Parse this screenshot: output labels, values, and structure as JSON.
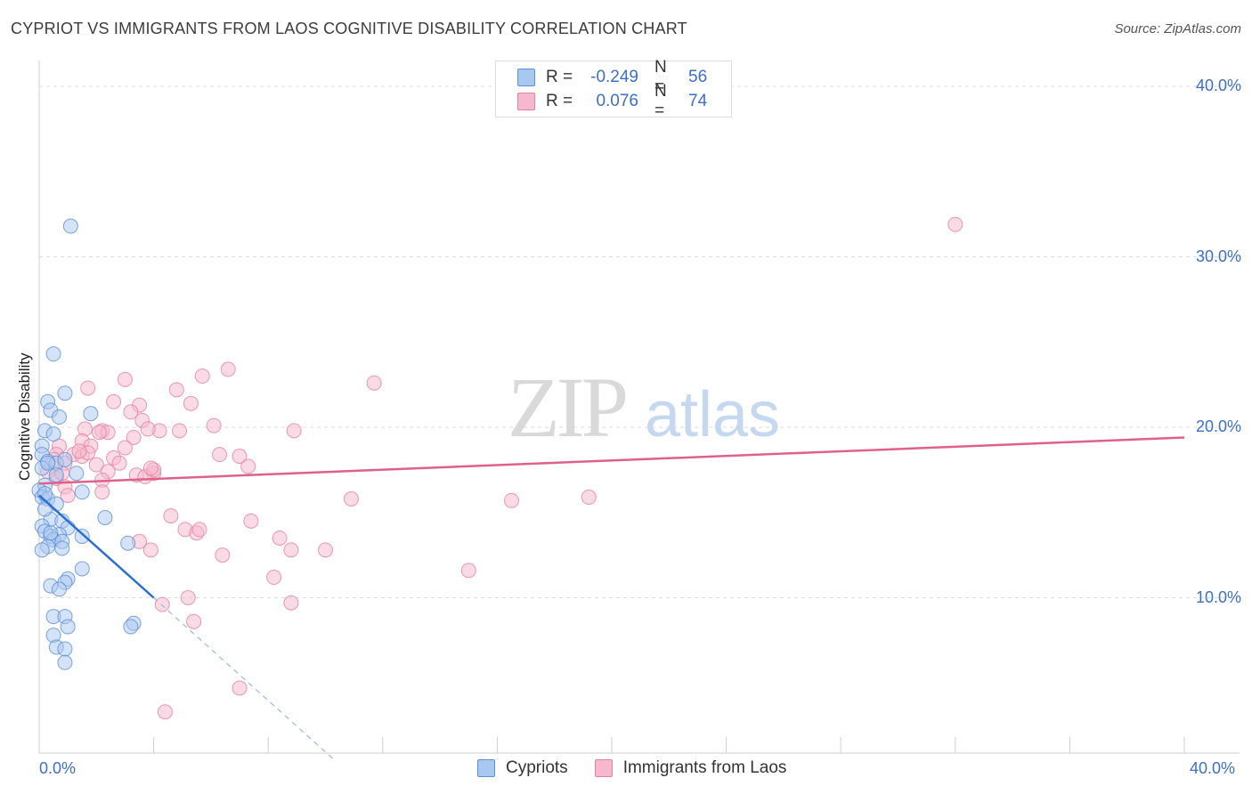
{
  "title": "CYPRIOT VS IMMIGRANTS FROM LAOS COGNITIVE DISABILITY CORRELATION CHART",
  "source": "Source: ZipAtlas.com",
  "watermark": {
    "zip": "ZIP",
    "atlas": "atlas"
  },
  "legend_box": {
    "rows": [
      {
        "r_label": "R =",
        "r_value": "-0.249",
        "n_label": "N =",
        "n_value": "56"
      },
      {
        "r_label": "R =",
        "r_value": "0.076",
        "n_label": "N =",
        "n_value": "74"
      }
    ]
  },
  "bottom_legend": [
    "Cypriots",
    "Immigrants from Laos"
  ],
  "colors": {
    "blue_fill": "#a9c8f0",
    "blue_stroke": "#5b8fd6",
    "blue_line": "#2a6fd6",
    "pink_fill": "#f6b8cc",
    "pink_stroke": "#e67fa0",
    "pink_line": "#e0608c",
    "axis_text": "#3d6fc4"
  },
  "chart_data": {
    "type": "scatter",
    "title": "CYPRIOT VS IMMIGRANTS FROM LAOS COGNITIVE DISABILITY CORRELATION CHART",
    "xlabel": "",
    "ylabel": "Cognitive Disability",
    "xlim": [
      0,
      40
    ],
    "ylim": [
      0,
      40
    ],
    "x_tick_labels": [
      "0.0%",
      "40.0%"
    ],
    "y_tick_labels": [
      "10.0%",
      "20.0%",
      "30.0%",
      "40.0%"
    ],
    "y_ticks": [
      10,
      20,
      30,
      40
    ],
    "grid": true,
    "series": [
      {
        "name": "Cypriots",
        "color": "blue",
        "r": -0.249,
        "n": 56,
        "trend": {
          "x": [
            0,
            4.0
          ],
          "y": [
            16.0,
            10.0
          ]
        },
        "trend_extension": {
          "x": [
            4.0,
            10.3
          ],
          "y": [
            10.0,
            0.5
          ]
        },
        "points": [
          [
            1.1,
            31.8
          ],
          [
            0.5,
            24.3
          ],
          [
            0.9,
            22.0
          ],
          [
            0.3,
            21.5
          ],
          [
            0.4,
            21.0
          ],
          [
            1.8,
            20.8
          ],
          [
            0.7,
            20.6
          ],
          [
            0.2,
            19.8
          ],
          [
            0.5,
            19.6
          ],
          [
            0.1,
            18.9
          ],
          [
            0.1,
            18.4
          ],
          [
            0.3,
            18.0
          ],
          [
            0.6,
            17.9
          ],
          [
            0.1,
            17.6
          ],
          [
            1.3,
            17.3
          ],
          [
            0.2,
            16.6
          ],
          [
            0.0,
            16.3
          ],
          [
            1.5,
            16.2
          ],
          [
            0.1,
            15.9
          ],
          [
            0.3,
            15.8
          ],
          [
            0.6,
            15.5
          ],
          [
            2.3,
            14.7
          ],
          [
            0.4,
            14.6
          ],
          [
            0.8,
            14.5
          ],
          [
            0.1,
            14.2
          ],
          [
            1.0,
            14.1
          ],
          [
            0.2,
            13.9
          ],
          [
            0.7,
            13.7
          ],
          [
            0.4,
            13.6
          ],
          [
            1.5,
            13.6
          ],
          [
            0.5,
            13.4
          ],
          [
            0.8,
            13.3
          ],
          [
            0.3,
            13.0
          ],
          [
            0.8,
            12.9
          ],
          [
            0.1,
            12.8
          ],
          [
            3.1,
            13.2
          ],
          [
            1.5,
            11.7
          ],
          [
            1.0,
            11.1
          ],
          [
            0.9,
            10.9
          ],
          [
            0.4,
            10.7
          ],
          [
            0.7,
            10.5
          ],
          [
            0.5,
            8.9
          ],
          [
            0.9,
            8.9
          ],
          [
            3.3,
            8.5
          ],
          [
            1.0,
            8.3
          ],
          [
            3.2,
            8.3
          ],
          [
            0.5,
            7.8
          ],
          [
            0.6,
            7.1
          ],
          [
            0.9,
            7.0
          ],
          [
            0.9,
            6.2
          ],
          [
            0.3,
            17.9
          ],
          [
            0.2,
            15.2
          ],
          [
            0.6,
            17.2
          ],
          [
            0.9,
            18.1
          ],
          [
            0.2,
            16.1
          ],
          [
            0.4,
            13.8
          ]
        ]
      },
      {
        "name": "Immigrants from Laos",
        "color": "pink",
        "r": 0.076,
        "n": 74,
        "trend": {
          "x": [
            0,
            40
          ],
          "y": [
            16.7,
            19.4
          ]
        },
        "points": [
          [
            32.0,
            31.9
          ],
          [
            6.6,
            23.4
          ],
          [
            5.7,
            23.0
          ],
          [
            3.0,
            22.8
          ],
          [
            11.7,
            22.6
          ],
          [
            1.7,
            22.3
          ],
          [
            4.8,
            22.2
          ],
          [
            2.6,
            21.5
          ],
          [
            5.3,
            21.4
          ],
          [
            3.5,
            21.3
          ],
          [
            3.2,
            20.9
          ],
          [
            3.6,
            20.4
          ],
          [
            6.1,
            20.1
          ],
          [
            1.6,
            19.9
          ],
          [
            2.2,
            19.8
          ],
          [
            2.4,
            19.7
          ],
          [
            4.2,
            19.8
          ],
          [
            4.9,
            19.8
          ],
          [
            8.9,
            19.8
          ],
          [
            3.3,
            19.4
          ],
          [
            1.5,
            19.2
          ],
          [
            1.8,
            18.9
          ],
          [
            0.7,
            18.9
          ],
          [
            3.0,
            18.8
          ],
          [
            0.6,
            18.4
          ],
          [
            1.2,
            18.4
          ],
          [
            1.5,
            18.3
          ],
          [
            6.3,
            18.4
          ],
          [
            7.0,
            18.3
          ],
          [
            0.5,
            18.1
          ],
          [
            2.6,
            18.2
          ],
          [
            2.8,
            17.9
          ],
          [
            0.9,
            17.9
          ],
          [
            2.0,
            17.8
          ],
          [
            7.3,
            17.7
          ],
          [
            0.3,
            17.4
          ],
          [
            2.4,
            17.4
          ],
          [
            3.4,
            17.2
          ],
          [
            4.0,
            17.3
          ],
          [
            0.6,
            17.0
          ],
          [
            2.2,
            16.9
          ],
          [
            3.7,
            17.1
          ],
          [
            0.9,
            16.5
          ],
          [
            2.2,
            16.2
          ],
          [
            1.0,
            16.0
          ],
          [
            10.9,
            15.8
          ],
          [
            16.5,
            15.7
          ],
          [
            19.2,
            15.9
          ],
          [
            4.6,
            14.8
          ],
          [
            7.4,
            14.5
          ],
          [
            5.1,
            14.0
          ],
          [
            5.5,
            13.8
          ],
          [
            8.4,
            13.5
          ],
          [
            3.5,
            13.3
          ],
          [
            3.9,
            12.8
          ],
          [
            8.8,
            12.8
          ],
          [
            10.0,
            12.8
          ],
          [
            6.4,
            12.5
          ],
          [
            15.0,
            11.6
          ],
          [
            8.2,
            11.2
          ],
          [
            5.2,
            10.0
          ],
          [
            8.8,
            9.7
          ],
          [
            4.3,
            9.6
          ],
          [
            5.4,
            8.6
          ],
          [
            7.0,
            4.7
          ],
          [
            4.4,
            3.3
          ],
          [
            1.7,
            18.5
          ],
          [
            4.0,
            17.5
          ],
          [
            2.1,
            19.7
          ],
          [
            0.8,
            17.3
          ],
          [
            3.9,
            17.6
          ],
          [
            1.4,
            18.6
          ],
          [
            3.8,
            19.9
          ],
          [
            5.6,
            14.0
          ]
        ]
      }
    ]
  }
}
